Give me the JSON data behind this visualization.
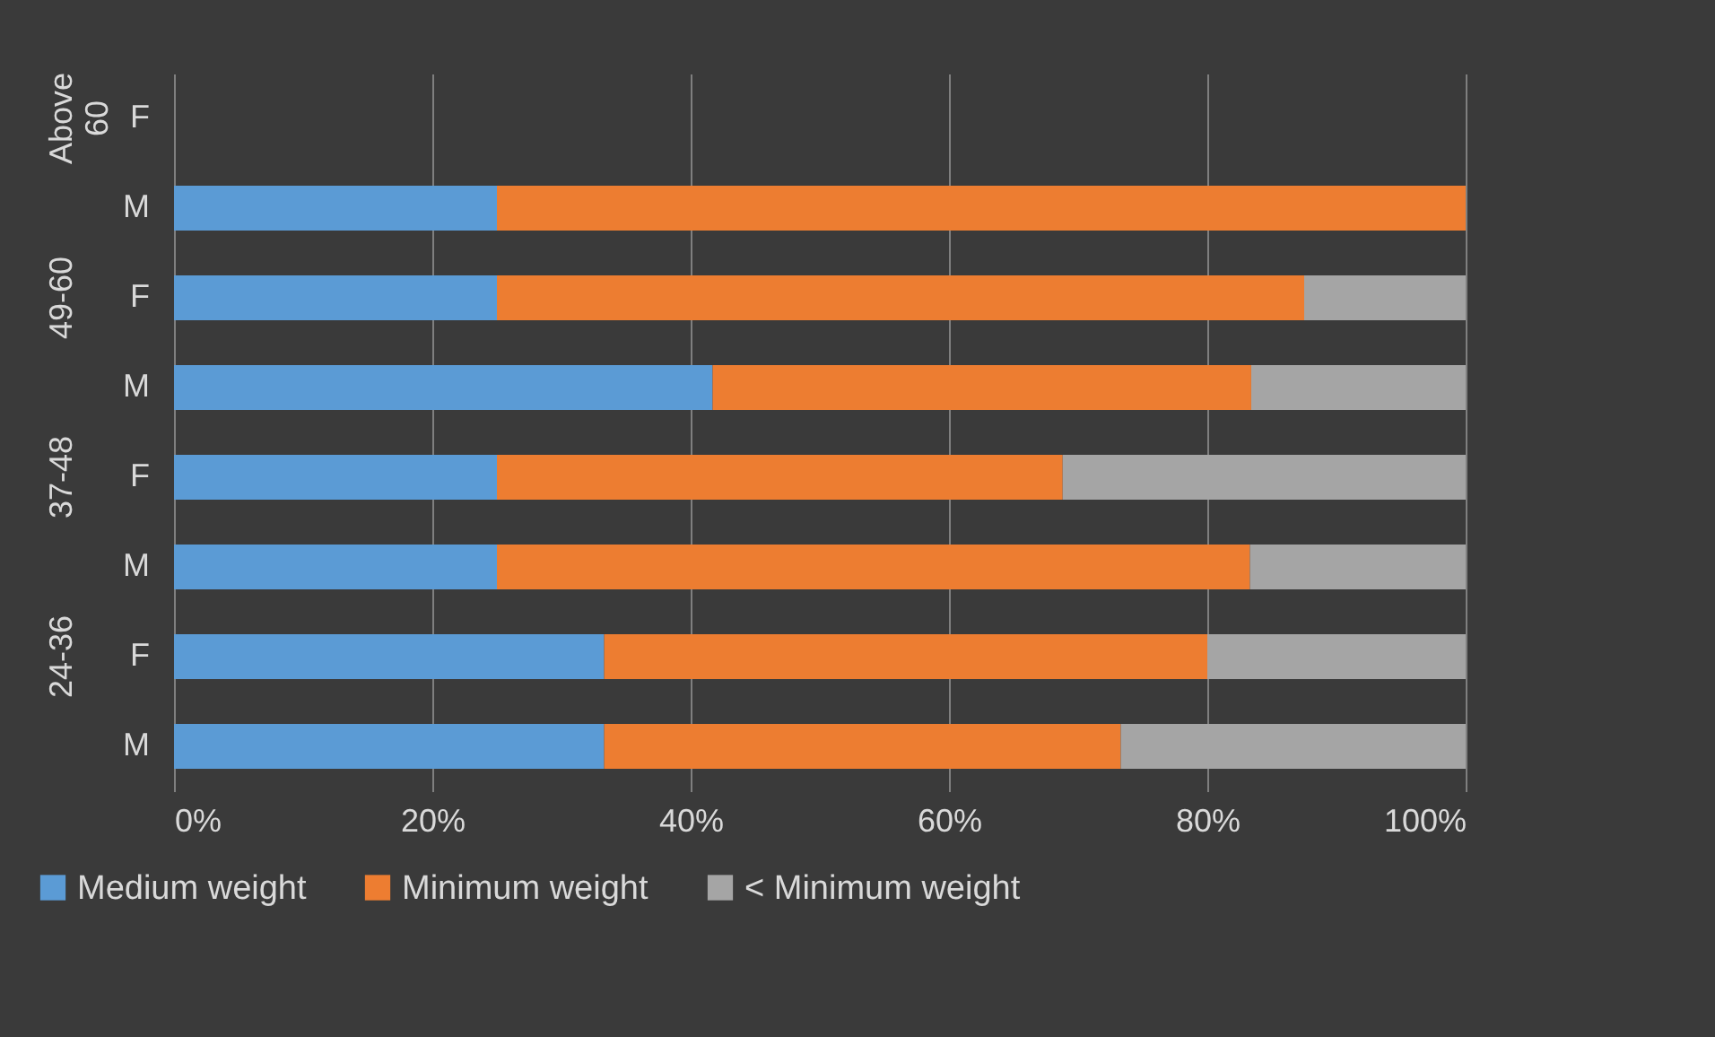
{
  "chart_data": {
    "type": "bar",
    "orientation": "horizontal",
    "stacked": true,
    "categories": [
      "F",
      "M",
      "F",
      "M",
      "F",
      "M",
      "F",
      "M"
    ],
    "annotations": [
      "Above 60",
      "49-60",
      "37-48",
      "24-36"
    ],
    "series": [
      {
        "name": "Medium weight",
        "color": "#5b9bd5",
        "values": [
          null,
          25,
          25,
          41.7,
          25,
          25,
          33.3,
          33.3
        ]
      },
      {
        "name": "Minimum weight",
        "color": "#ed7d31",
        "values": [
          null,
          75,
          62.5,
          41.7,
          43.8,
          58.3,
          46.7,
          40
        ]
      },
      {
        "name": "< Minimum weight",
        "color": "#a5a5a5",
        "values": [
          null,
          0,
          12.5,
          16.6,
          31.2,
          16.7,
          20,
          26.7
        ]
      }
    ],
    "xlim": [
      0,
      100
    ],
    "xticks": [
      {
        "value": 0,
        "label": "0%"
      },
      {
        "value": 20,
        "label": "20%"
      },
      {
        "value": 40,
        "label": "40%"
      },
      {
        "value": 60,
        "label": "60%"
      },
      {
        "value": 80,
        "label": "80%"
      },
      {
        "value": 100,
        "label": "100%"
      }
    ],
    "grid": "x",
    "legend": "bottom"
  }
}
